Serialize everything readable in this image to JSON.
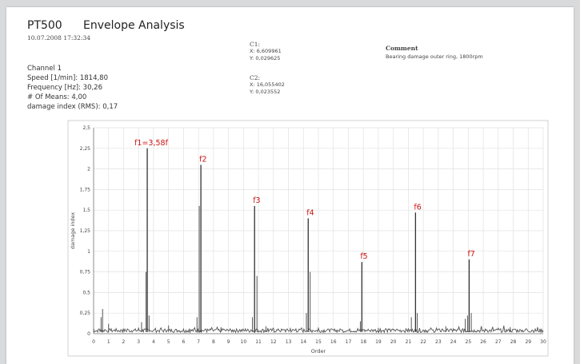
{
  "header": {
    "device": "PT500",
    "title": "Envelope Analysis",
    "datetime": "10.07.2008   17:32:34"
  },
  "measurement": {
    "channel": "Channel 1",
    "speed": "Speed [1/min]: 1814,80",
    "frequency": "Frequency [Hz]: 30,26",
    "means": "# Of Means: 4,00",
    "damage_index": "damage index (RMS): 0,17"
  },
  "cursors": {
    "c1_label": "C1:",
    "c1_x": "X: 6,609961",
    "c1_y": "Y: 0,029625",
    "c2_label": "C2:",
    "c2_x": "X: 16,055402",
    "c2_y": "Y: 0,023552"
  },
  "comment": {
    "label": "Comment",
    "text": "Bearing damage outer ring, 1800rpm"
  },
  "chart_data": {
    "type": "line",
    "xlabel": "Order",
    "ylabel": "damage index",
    "xlim": [
      0,
      30
    ],
    "ylim": [
      0,
      2.5
    ],
    "grid": true,
    "x_ticks": [
      0,
      1,
      2,
      3,
      4,
      5,
      6,
      7,
      8,
      9,
      10,
      11,
      12,
      13,
      14,
      15,
      16,
      17,
      18,
      19,
      20,
      21,
      22,
      23,
      24,
      25,
      26,
      27,
      28,
      29,
      30
    ],
    "y_ticks": [
      0,
      0.25,
      0.5,
      0.75,
      1,
      1.25,
      1.5,
      1.75,
      2,
      2.25,
      2.5
    ],
    "x_tick_labels": [
      "0",
      "1",
      "2",
      "3",
      "4",
      "5",
      "6",
      "7",
      "8",
      "9",
      "10",
      "11",
      "12",
      "13",
      "14",
      "15",
      "16",
      "17",
      "18",
      "19",
      "20",
      "21",
      "22",
      "23",
      "24",
      "25",
      "26",
      "27",
      "28",
      "29",
      "30"
    ],
    "y_tick_labels": [
      "0",
      "0,25",
      "0,5",
      "0,75",
      "1",
      "1,25",
      "1,5",
      "1,75",
      "2",
      "2,25",
      "2,5"
    ],
    "line_color": "#555555",
    "annotation_color": "#cc1111",
    "peaks": [
      {
        "label": "f1=3,58f",
        "x": 3.58,
        "y": 2.25
      },
      {
        "label": "f2",
        "x": 7.16,
        "y": 2.05
      },
      {
        "label": "f3",
        "x": 10.74,
        "y": 1.55
      },
      {
        "label": "f4",
        "x": 14.32,
        "y": 1.4
      },
      {
        "label": "f5",
        "x": 17.9,
        "y": 0.87
      },
      {
        "label": "f6",
        "x": 21.48,
        "y": 1.47
      },
      {
        "label": "f7",
        "x": 25.06,
        "y": 0.9
      }
    ],
    "minor_peaks": [
      {
        "x": 0.5,
        "y": 0.2
      },
      {
        "x": 0.6,
        "y": 0.3
      },
      {
        "x": 1.0,
        "y": 0.12
      },
      {
        "x": 3.2,
        "y": 0.14
      },
      {
        "x": 3.5,
        "y": 0.75
      },
      {
        "x": 3.7,
        "y": 0.22
      },
      {
        "x": 5.0,
        "y": 0.1
      },
      {
        "x": 6.9,
        "y": 0.2
      },
      {
        "x": 7.05,
        "y": 1.55
      },
      {
        "x": 10.6,
        "y": 0.2
      },
      {
        "x": 10.9,
        "y": 0.7
      },
      {
        "x": 14.2,
        "y": 0.25
      },
      {
        "x": 14.45,
        "y": 0.75
      },
      {
        "x": 17.8,
        "y": 0.15
      },
      {
        "x": 21.2,
        "y": 0.2
      },
      {
        "x": 21.6,
        "y": 0.25
      },
      {
        "x": 24.8,
        "y": 0.18
      },
      {
        "x": 24.95,
        "y": 0.22
      },
      {
        "x": 25.2,
        "y": 0.25
      },
      {
        "x": 27.8,
        "y": 0.08
      },
      {
        "x": 11.5,
        "y": 0.09
      },
      {
        "x": 8.5,
        "y": 0.08
      },
      {
        "x": 19.0,
        "y": 0.07
      },
      {
        "x": 23.5,
        "y": 0.09
      }
    ],
    "baseline": 0.05
  }
}
